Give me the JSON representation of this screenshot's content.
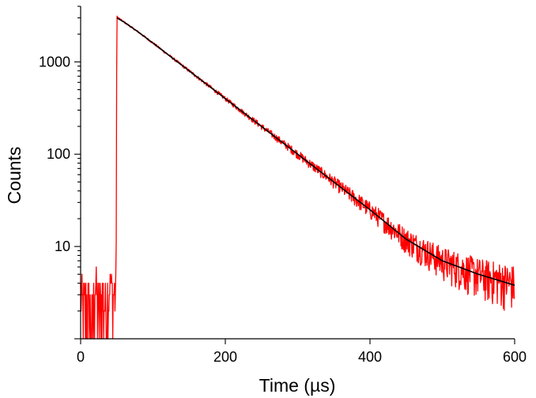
{
  "chart_data": {
    "type": "line",
    "title": "",
    "xlabel": "Time (µs)",
    "ylabel": "Counts",
    "xscale": "linear",
    "yscale": "log",
    "xlim": [
      0,
      600
    ],
    "ylim": [
      1,
      4000
    ],
    "xticks": [
      0,
      200,
      400,
      600
    ],
    "xtick_labels": [
      "0",
      "200",
      "400",
      "600"
    ],
    "yticks": [
      10,
      100,
      1000
    ],
    "ytick_labels": [
      "10",
      "100",
      "1000"
    ],
    "grid": false,
    "legend": "none",
    "series": [
      {
        "color": "#ff0000",
        "style": "noisy-data",
        "x": [
          0,
          5,
          10,
          15,
          20,
          25,
          30,
          35,
          40,
          45,
          49,
          50,
          52,
          60,
          80,
          100,
          150,
          200,
          250,
          300,
          350,
          400,
          450,
          500,
          550,
          600
        ],
        "y": [
          3,
          2,
          3,
          1,
          4,
          2,
          3,
          2,
          4,
          3,
          3,
          3100,
          3000,
          2700,
          2100,
          1600,
          800,
          400,
          200,
          100,
          50,
          25,
          12,
          7,
          5,
          4
        ]
      },
      {
        "color": "#000000",
        "style": "fit",
        "x": [
          50,
          60,
          80,
          100,
          150,
          200,
          250,
          300,
          350,
          400,
          450,
          500,
          550,
          600
        ],
        "y": [
          3000,
          2700,
          2100,
          1600,
          800,
          400,
          200,
          100,
          50,
          25,
          12,
          7,
          5,
          3.8
        ]
      }
    ]
  }
}
